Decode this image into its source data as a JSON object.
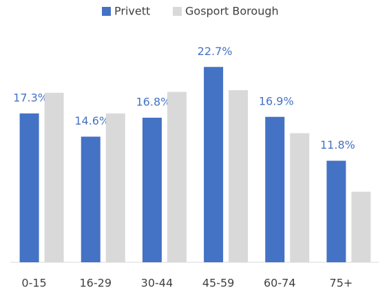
{
  "chart_data": {
    "type": "bar",
    "categories": [
      "0-15",
      "16-29",
      "30-44",
      "45-59",
      "60-74",
      "75+"
    ],
    "series": [
      {
        "name": "Privett",
        "color": "#4472c4",
        "values": [
          17.3,
          14.6,
          16.8,
          22.7,
          16.9,
          11.8
        ],
        "value_labels": [
          "17.3%",
          "14.6%",
          "16.8%",
          "22.7%",
          "16.9%",
          "11.8%"
        ]
      },
      {
        "name": "Gosport Borough",
        "color": "#d9d9d9",
        "values": [
          19.7,
          17.3,
          19.8,
          20.0,
          15.0,
          8.2
        ]
      }
    ],
    "ylim": [
      0,
      25
    ],
    "legend": "top"
  }
}
